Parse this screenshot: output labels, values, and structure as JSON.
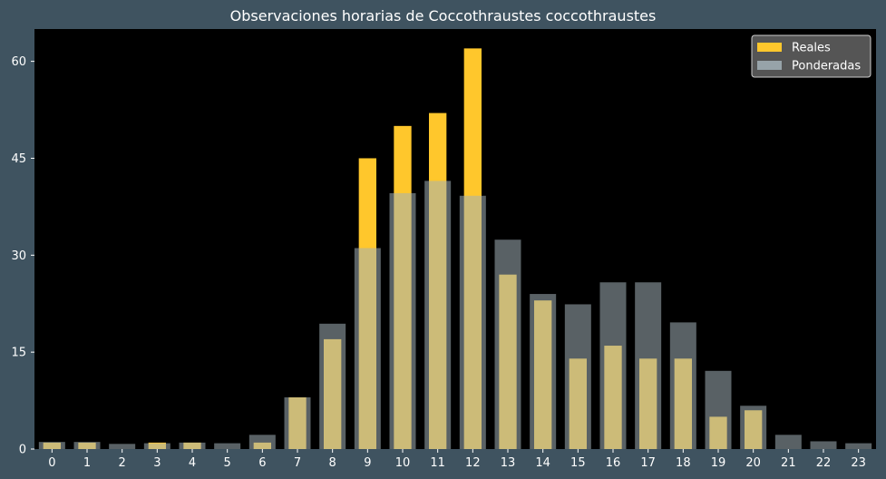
{
  "chart_data": {
    "type": "bar",
    "title": "Observaciones horarias de Coccothraustes coccothraustes",
    "xlabel": "",
    "ylabel": "",
    "categories": [
      "0",
      "1",
      "2",
      "3",
      "4",
      "5",
      "6",
      "7",
      "8",
      "9",
      "10",
      "11",
      "12",
      "13",
      "14",
      "15",
      "16",
      "17",
      "18",
      "19",
      "20",
      "21",
      "22",
      "23"
    ],
    "series": [
      {
        "name": "Reales",
        "color": "#ffc72c",
        "values": [
          1,
          1,
          0,
          1,
          1,
          0,
          1,
          8,
          17,
          45,
          50,
          52,
          62,
          27,
          23,
          14,
          16,
          14,
          14,
          5,
          6,
          0,
          0,
          0
        ]
      },
      {
        "name": "Ponderadas",
        "color": "#a3b1b8",
        "values": [
          1.1,
          1.1,
          0.8,
          0.9,
          1.0,
          0.9,
          2.2,
          8.0,
          19.4,
          31.1,
          39.6,
          41.5,
          39.2,
          32.4,
          24.0,
          22.4,
          25.8,
          25.8,
          19.6,
          12.1,
          6.7,
          2.2,
          1.2,
          0.9
        ]
      }
    ],
    "ylim": [
      0,
      65
    ],
    "yticks": [
      0,
      15,
      30,
      45,
      60
    ],
    "grid": false,
    "legend_position": "top-right",
    "plot_background": "#000000",
    "figure_background": "#3f5360"
  }
}
